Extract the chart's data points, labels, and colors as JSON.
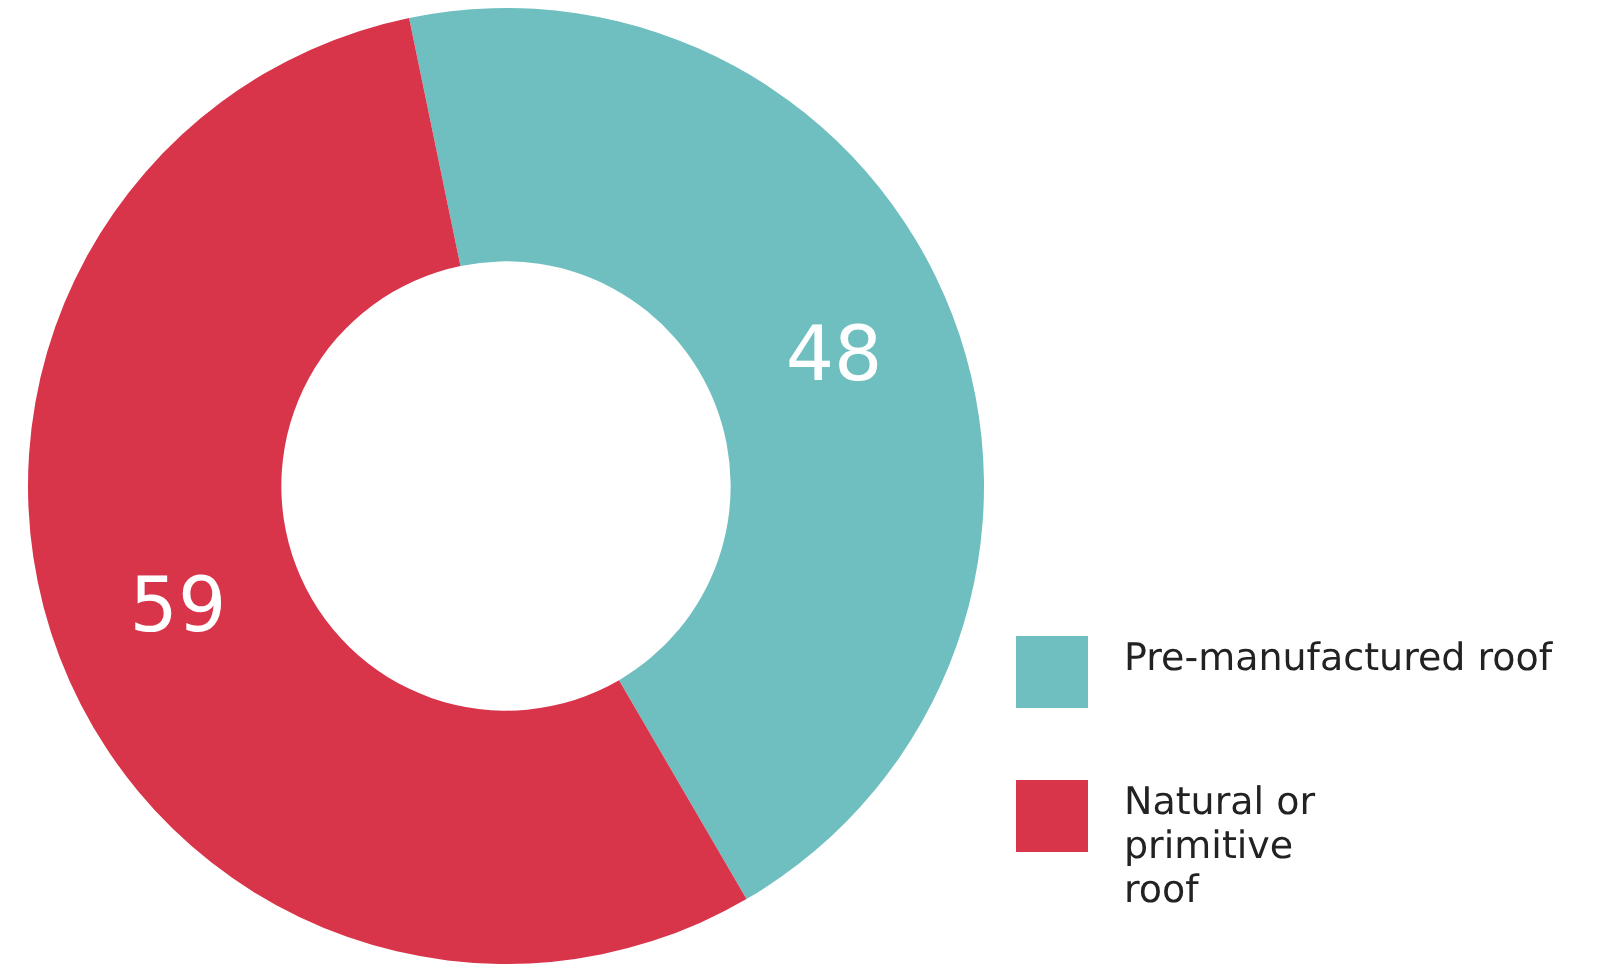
{
  "chart_data": {
    "type": "donut",
    "categories": [
      "Pre-manufactured roof",
      "Natural or primitive roof"
    ],
    "values": [
      48,
      59
    ],
    "colors": [
      "#6fbfc0",
      "#d8344a"
    ],
    "data_labels": true,
    "legend": "bottom right"
  }
}
